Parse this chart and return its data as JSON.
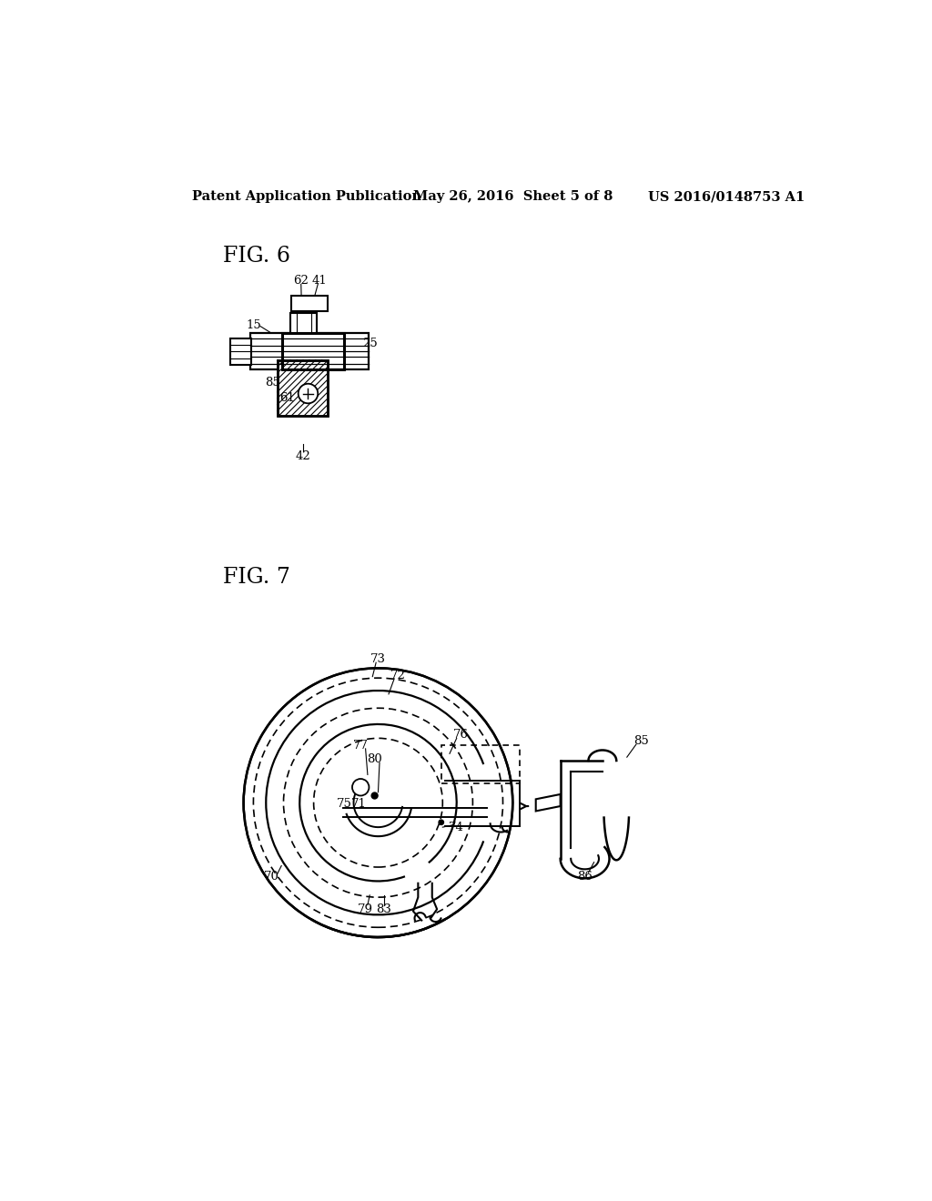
{
  "background_color": "#ffffff",
  "header_left": "Patent Application Publication",
  "header_center": "May 26, 2016  Sheet 5 of 8",
  "header_right": "US 2016/0148753 A1",
  "fig6_label": "FIG. 6",
  "fig7_label": "FIG. 7",
  "text_color": "#000000",
  "line_color": "#000000"
}
